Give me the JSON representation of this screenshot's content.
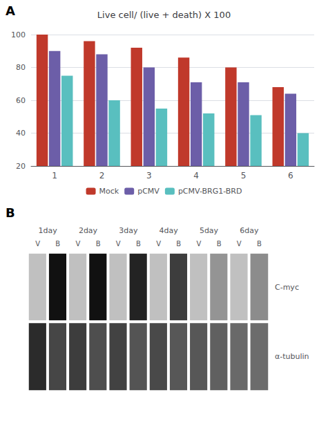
{
  "chart_data": [
    {
      "type": "bar",
      "title": "Live cell/ (live + death) X 100",
      "annotations": [
        "A"
      ],
      "categories": [
        "1",
        "2",
        "3",
        "4",
        "5",
        "6"
      ],
      "series": [
        {
          "name": "Mock",
          "color": "#c0392b",
          "values": [
            100,
            96,
            92,
            86,
            80,
            68
          ]
        },
        {
          "name": "pCMV",
          "color": "#6c5ea8",
          "values": [
            90,
            88,
            80,
            71,
            71,
            64
          ]
        },
        {
          "name": "pCMV-BRG1-BRD",
          "color": "#59bfbf",
          "values": [
            75,
            60,
            55,
            52,
            51,
            40
          ]
        }
      ],
      "ylim": [
        20,
        100
      ],
      "yticks": [
        20,
        40,
        60,
        80,
        100
      ],
      "grid": true,
      "legend": "bottom"
    },
    {
      "type": "heatmap",
      "annotations": [
        "B"
      ],
      "categories": [
        "V",
        "B",
        "V",
        "B",
        "V",
        "B",
        "V",
        "B",
        "V",
        "B",
        "V",
        "B"
      ],
      "group_labels": [
        "1day",
        "2day",
        "3day",
        "4day",
        "5day",
        "6day"
      ],
      "series": [
        {
          "name": "C-myc",
          "values": [
            0.0,
            1.0,
            0.0,
            1.0,
            0.0,
            0.9,
            0.0,
            0.75,
            0.0,
            0.25,
            0.0,
            0.3
          ]
        },
        {
          "name": "α-tubulin",
          "values": [
            0.85,
            0.7,
            0.75,
            0.65,
            0.72,
            0.62,
            0.68,
            0.6,
            0.6,
            0.55,
            0.5,
            0.48
          ]
        }
      ],
      "zlim": [
        0,
        1
      ],
      "colors": [
        "#c0c0c0",
        "#111111"
      ]
    }
  ]
}
